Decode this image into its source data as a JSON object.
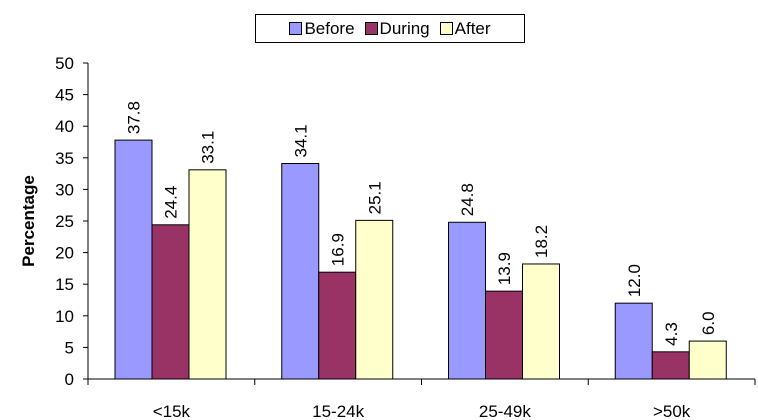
{
  "chart_data": {
    "type": "bar",
    "categories": [
      "<15k",
      "15-24k",
      "25-49k",
      ">50k"
    ],
    "series": [
      {
        "name": "Before",
        "values": [
          37.8,
          34.1,
          24.8,
          12.0
        ],
        "color": "#9999FF"
      },
      {
        "name": "During",
        "values": [
          24.4,
          16.9,
          13.9,
          4.3
        ],
        "color": "#993366"
      },
      {
        "name": "After",
        "values": [
          33.1,
          25.1,
          18.2,
          6.0
        ],
        "color": "#FFFFCC"
      }
    ],
    "ylabel": "Percentage",
    "xlabel": "",
    "ylim": [
      0,
      50
    ],
    "yticks": [
      0,
      5,
      10,
      15,
      20,
      25,
      30,
      35,
      40,
      45,
      50
    ],
    "data_labels": [
      [
        "37.8",
        "24.4",
        "33.1"
      ],
      [
        "34.1",
        "16.9",
        "25.1"
      ],
      [
        "24.8",
        "13.9",
        "18.2"
      ],
      [
        "12.0",
        "4.3",
        "6.0"
      ]
    ],
    "legend": "top-center",
    "grid": false
  }
}
